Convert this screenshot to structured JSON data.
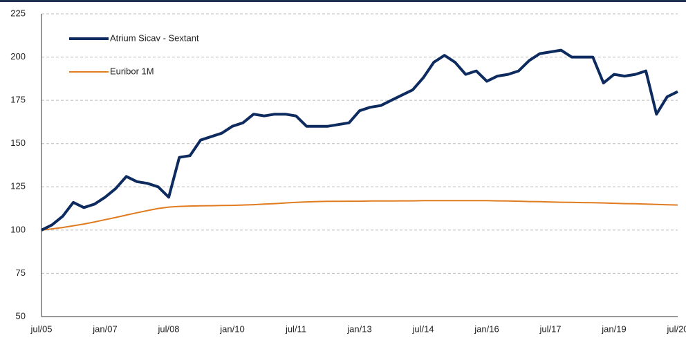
{
  "chart_data": {
    "type": "line",
    "categories": [
      "jul/05",
      null,
      null,
      null,
      null,
      null,
      "jan/07",
      null,
      null,
      null,
      null,
      null,
      "jul/08",
      null,
      null,
      null,
      null,
      null,
      "jan/10",
      null,
      null,
      null,
      null,
      null,
      "jul/11",
      null,
      null,
      null,
      null,
      null,
      "jan/13",
      null,
      null,
      null,
      null,
      null,
      "jul/14",
      null,
      null,
      null,
      null,
      null,
      "jan/16",
      null,
      null,
      null,
      null,
      null,
      "jul/17",
      null,
      null,
      null,
      null,
      null,
      "jan/19",
      null,
      null,
      null,
      null,
      null,
      "jul/20"
    ],
    "series": [
      {
        "name": "Atrium Sicav - Sextant",
        "color": "#0d2b5e",
        "values": [
          100,
          103,
          108,
          116,
          113,
          115,
          119,
          124,
          131,
          128,
          127,
          125,
          119,
          142,
          143,
          152,
          154,
          156,
          160,
          162,
          167,
          166,
          167,
          167,
          166,
          160,
          160,
          160,
          161,
          162,
          169,
          171,
          172,
          175,
          178,
          181,
          188,
          197,
          201,
          197,
          190,
          192,
          186,
          189,
          190,
          192,
          198,
          202,
          203,
          204,
          200,
          200,
          200,
          185,
          190,
          189,
          190,
          192,
          167,
          177,
          180
        ]
      },
      {
        "name": "Euribor 1M",
        "color": "#e07b1f",
        "values": [
          100,
          100.7,
          101.5,
          102.5,
          103.5,
          104.7,
          106,
          107.3,
          108.7,
          110,
          111.3,
          112.5,
          113.3,
          113.7,
          113.9,
          114,
          114.1,
          114.2,
          114.3,
          114.5,
          114.7,
          115,
          115.3,
          115.7,
          116,
          116.3,
          116.5,
          116.6,
          116.6,
          116.7,
          116.7,
          116.8,
          116.8,
          116.8,
          116.9,
          116.9,
          117,
          117,
          117,
          117,
          117,
          117,
          117,
          116.9,
          116.8,
          116.7,
          116.5,
          116.4,
          116.2,
          116.1,
          116,
          115.9,
          115.8,
          115.7,
          115.5,
          115.3,
          115.2,
          115,
          114.8,
          114.6,
          114.5
        ]
      }
    ],
    "ylim": [
      50,
      225
    ],
    "yticks": [
      50,
      75,
      100,
      125,
      150,
      175,
      200,
      225
    ],
    "grid": true
  }
}
